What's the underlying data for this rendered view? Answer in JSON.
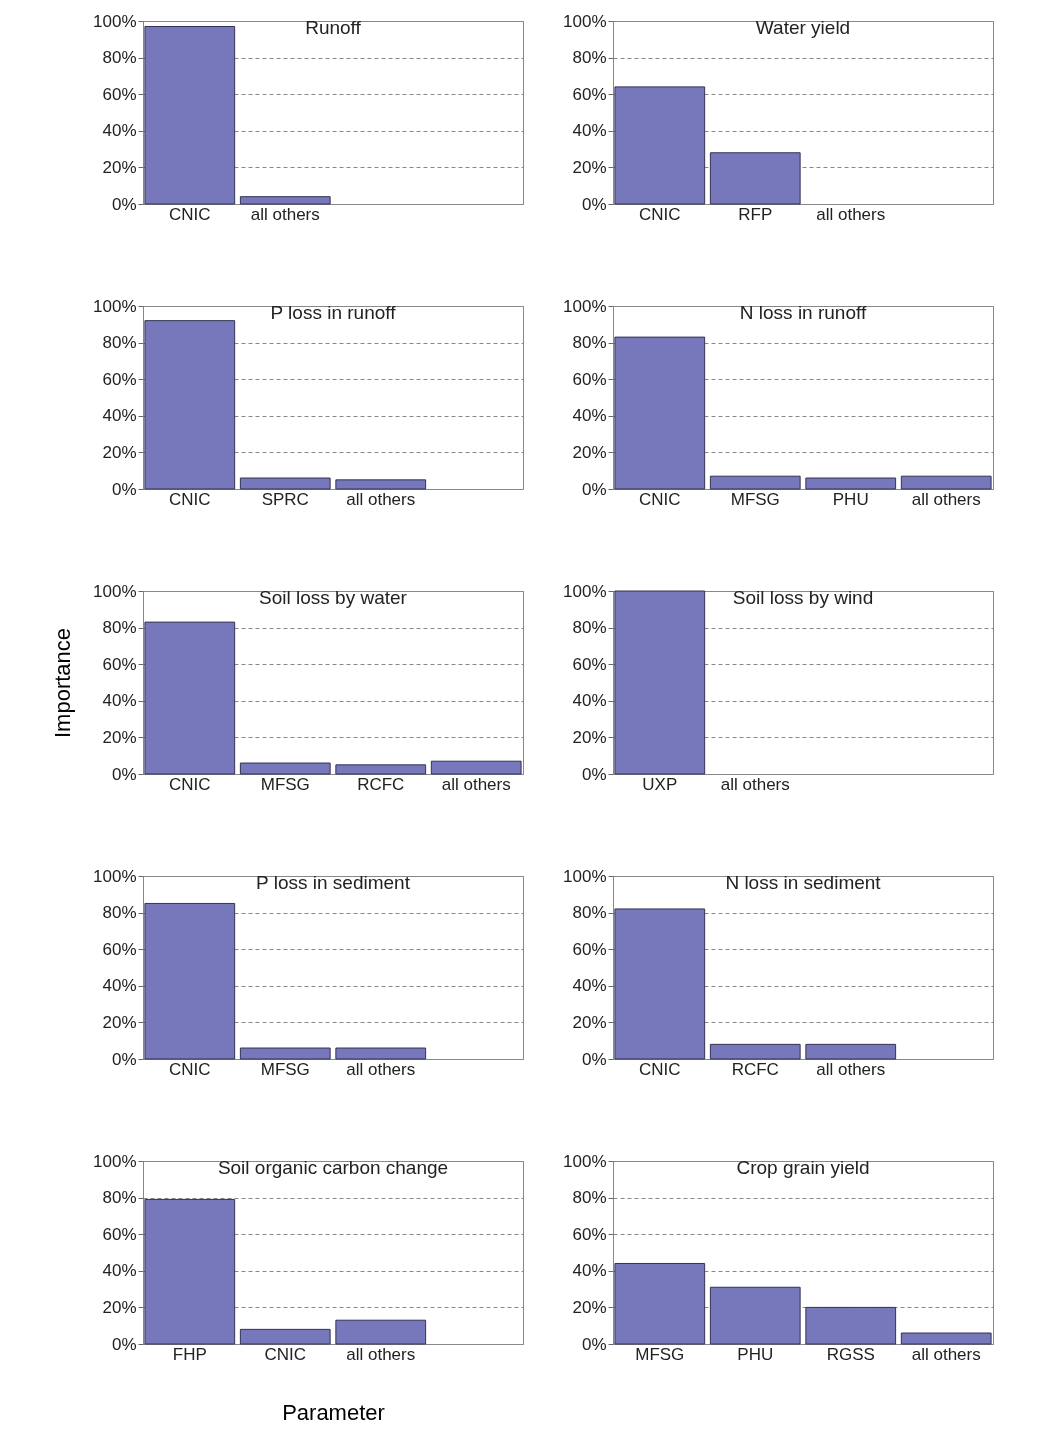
{
  "chart_data": [
    {
      "type": "bar",
      "title": "Runoff",
      "categories": [
        "CNIC",
        "all others",
        null,
        null
      ],
      "values": [
        97,
        4,
        null,
        null
      ],
      "color": "#7777bb",
      "ylim": [
        0,
        100
      ],
      "yticks": [
        {
          "value": 0,
          "label": "0%"
        },
        {
          "value": 20,
          "label": "20%"
        },
        {
          "value": 40,
          "label": "40%"
        },
        {
          "value": 60,
          "label": "60%"
        },
        {
          "value": 80,
          "label": "80%"
        },
        {
          "value": 100,
          "label": "100%"
        }
      ],
      "grid": "y"
    },
    {
      "type": "bar",
      "title": "Water yield",
      "categories": [
        "CNIC",
        "RFP",
        "all others",
        null
      ],
      "values": [
        64,
        28,
        null,
        null
      ],
      "color": "#7777bb",
      "ylim": [
        0,
        100
      ],
      "yticks": [
        {
          "value": 0,
          "label": "0%"
        },
        {
          "value": 20,
          "label": "20%"
        },
        {
          "value": 40,
          "label": "40%"
        },
        {
          "value": 60,
          "label": "60%"
        },
        {
          "value": 80,
          "label": "80%"
        },
        {
          "value": 100,
          "label": "100%"
        }
      ],
      "grid": "y"
    },
    {
      "type": "bar",
      "title": "P loss in runoff",
      "categories": [
        "CNIC",
        "SPRC",
        "all others",
        null
      ],
      "values": [
        92,
        6,
        5,
        null
      ],
      "color": "#7777bb",
      "ylim": [
        0,
        100
      ],
      "yticks": [
        {
          "value": 0,
          "label": "0%"
        },
        {
          "value": 20,
          "label": "20%"
        },
        {
          "value": 40,
          "label": "40%"
        },
        {
          "value": 60,
          "label": "60%"
        },
        {
          "value": 80,
          "label": "80%"
        },
        {
          "value": 100,
          "label": "100%"
        }
      ],
      "grid": "y"
    },
    {
      "type": "bar",
      "title": "N loss in runoff",
      "categories": [
        "CNIC",
        "MFSG",
        "PHU",
        "all others"
      ],
      "values": [
        83,
        7,
        6,
        7
      ],
      "color": "#7777bb",
      "ylim": [
        0,
        100
      ],
      "yticks": [
        {
          "value": 0,
          "label": "0%"
        },
        {
          "value": 20,
          "label": "20%"
        },
        {
          "value": 40,
          "label": "40%"
        },
        {
          "value": 60,
          "label": "60%"
        },
        {
          "value": 80,
          "label": "80%"
        },
        {
          "value": 100,
          "label": "100%"
        }
      ],
      "grid": "y"
    },
    {
      "type": "bar",
      "title": "Soil loss by water",
      "ylabel": "Importance",
      "categories": [
        "CNIC",
        "MFSG",
        "RCFC",
        "all others"
      ],
      "values": [
        83,
        6,
        5,
        7
      ],
      "color": "#7777bb",
      "ylim": [
        0,
        100
      ],
      "yticks": [
        {
          "value": 0,
          "label": "0%"
        },
        {
          "value": 20,
          "label": "20%"
        },
        {
          "value": 40,
          "label": "40%"
        },
        {
          "value": 60,
          "label": "60%"
        },
        {
          "value": 80,
          "label": "80%"
        },
        {
          "value": 100,
          "label": "100%"
        }
      ],
      "grid": "y"
    },
    {
      "type": "bar",
      "title": "Soil loss by wind",
      "categories": [
        "UXP",
        "all others",
        null,
        null
      ],
      "values": [
        100,
        null,
        null,
        null
      ],
      "color": "#7777bb",
      "ylim": [
        0,
        100
      ],
      "yticks": [
        {
          "value": 0,
          "label": "0%"
        },
        {
          "value": 20,
          "label": "20%"
        },
        {
          "value": 40,
          "label": "40%"
        },
        {
          "value": 60,
          "label": "60%"
        },
        {
          "value": 80,
          "label": "80%"
        },
        {
          "value": 100,
          "label": "100%"
        }
      ],
      "grid": "y"
    },
    {
      "type": "bar",
      "title": "P loss in sediment",
      "categories": [
        "CNIC",
        "MFSG",
        "all others",
        null
      ],
      "values": [
        85,
        6,
        6,
        null
      ],
      "color": "#7777bb",
      "ylim": [
        0,
        100
      ],
      "yticks": [
        {
          "value": 0,
          "label": "0%"
        },
        {
          "value": 20,
          "label": "20%"
        },
        {
          "value": 40,
          "label": "40%"
        },
        {
          "value": 60,
          "label": "60%"
        },
        {
          "value": 80,
          "label": "80%"
        },
        {
          "value": 100,
          "label": "100%"
        }
      ],
      "grid": "y"
    },
    {
      "type": "bar",
      "title": "N loss in sediment",
      "categories": [
        "CNIC",
        "RCFC",
        "all others",
        null
      ],
      "values": [
        82,
        8,
        8,
        null
      ],
      "color": "#7777bb",
      "ylim": [
        0,
        100
      ],
      "yticks": [
        {
          "value": 0,
          "label": "0%"
        },
        {
          "value": 20,
          "label": "20%"
        },
        {
          "value": 40,
          "label": "40%"
        },
        {
          "value": 60,
          "label": "60%"
        },
        {
          "value": 80,
          "label": "80%"
        },
        {
          "value": 100,
          "label": "100%"
        }
      ],
      "grid": "y"
    },
    {
      "type": "bar",
      "title": "Soil organic carbon change",
      "xlabel": "Parameter",
      "categories": [
        "FHP",
        "CNIC",
        "all others",
        null
      ],
      "values": [
        79,
        8,
        13,
        null
      ],
      "color": "#7777bb",
      "ylim": [
        0,
        100
      ],
      "yticks": [
        {
          "value": 0,
          "label": "0%"
        },
        {
          "value": 20,
          "label": "20%"
        },
        {
          "value": 40,
          "label": "40%"
        },
        {
          "value": 60,
          "label": "60%"
        },
        {
          "value": 80,
          "label": "80%"
        },
        {
          "value": 100,
          "label": "100%"
        }
      ],
      "grid": "y"
    },
    {
      "type": "bar",
      "title": "Crop grain yield",
      "categories": [
        "MFSG",
        "PHU",
        "RGSS",
        "all others"
      ],
      "values": [
        44,
        31,
        20,
        6
      ],
      "color": "#7777bb",
      "ylim": [
        0,
        100
      ],
      "yticks": [
        {
          "value": 0,
          "label": "0%"
        },
        {
          "value": 20,
          "label": "20%"
        },
        {
          "value": 40,
          "label": "40%"
        },
        {
          "value": 60,
          "label": "60%"
        },
        {
          "value": 80,
          "label": "80%"
        },
        {
          "value": 100,
          "label": "100%"
        }
      ],
      "grid": "y"
    }
  ]
}
